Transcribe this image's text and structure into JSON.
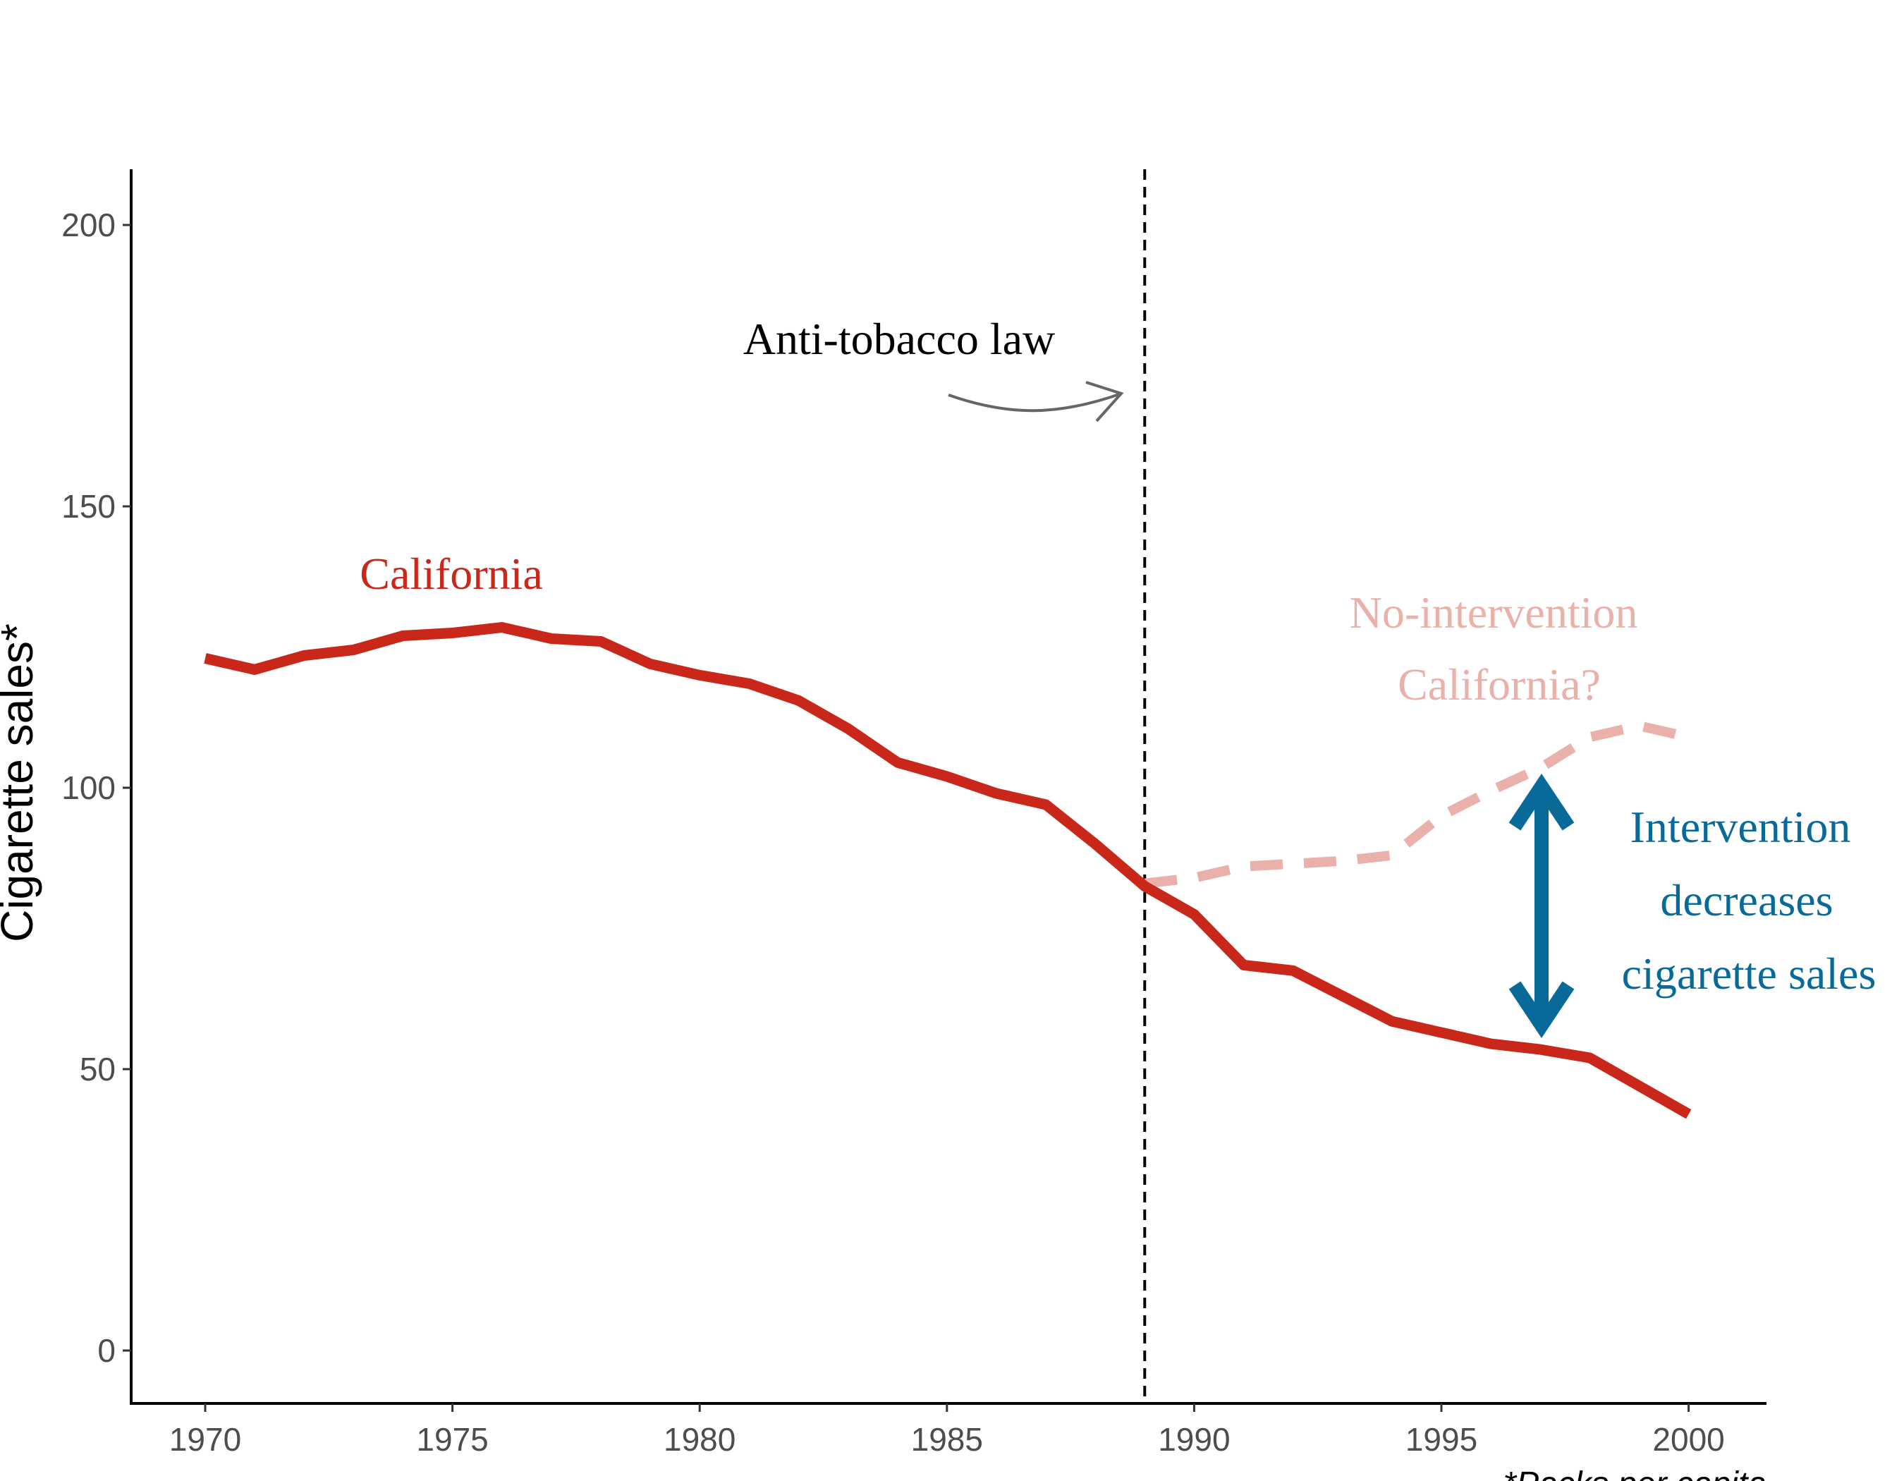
{
  "chart_data": {
    "type": "line",
    "x_ticks": [
      "1970",
      "1975",
      "1980",
      "1985",
      "1990",
      "1995",
      "2000"
    ],
    "y_ticks": [
      "0",
      "50",
      "100",
      "150",
      "200"
    ],
    "xlim": [
      1968.5,
      2001.5
    ],
    "ylim": [
      -10,
      210
    ],
    "ylabel": "Cigarette sales*",
    "caption": "*Packs per capita",
    "intervention_year": 1989,
    "series": [
      {
        "name": "California",
        "color": "#c8271a",
        "style": "solid",
        "x": [
          1970,
          1971,
          1972,
          1973,
          1974,
          1975,
          1976,
          1977,
          1978,
          1979,
          1980,
          1981,
          1982,
          1983,
          1984,
          1985,
          1986,
          1987,
          1988,
          1989,
          1990,
          1991,
          1992,
          1993,
          1994,
          1995,
          1996,
          1997,
          1998,
          1999,
          2000
        ],
        "y": [
          123,
          121,
          123.5,
          124.5,
          127,
          127.5,
          128.5,
          126.5,
          126,
          122,
          120,
          118.5,
          115.5,
          110.5,
          104.5,
          102,
          99,
          97,
          90,
          82.5,
          77.5,
          68.5,
          67.5,
          63,
          58.5,
          56.5,
          54.5,
          53.5,
          52,
          47,
          42
        ]
      },
      {
        "name": "No-intervention California?",
        "color": "#eab0aa",
        "style": "dashed",
        "x": [
          1989,
          1990,
          1991,
          1992,
          1993,
          1994,
          1995,
          1996,
          1997,
          1998,
          1999,
          2000
        ],
        "y": [
          83,
          84,
          86,
          86.5,
          87,
          88,
          95,
          99.5,
          103.5,
          109,
          111,
          109
        ]
      }
    ],
    "annotations": {
      "law_label": "Anti-tobacco law",
      "california_label": "California",
      "counterfactual_label": [
        "No-intervention",
        "California?"
      ],
      "effect_label": [
        "Intervention",
        "decreases",
        "cigarette sales"
      ],
      "effect_color": "#086a99"
    }
  }
}
